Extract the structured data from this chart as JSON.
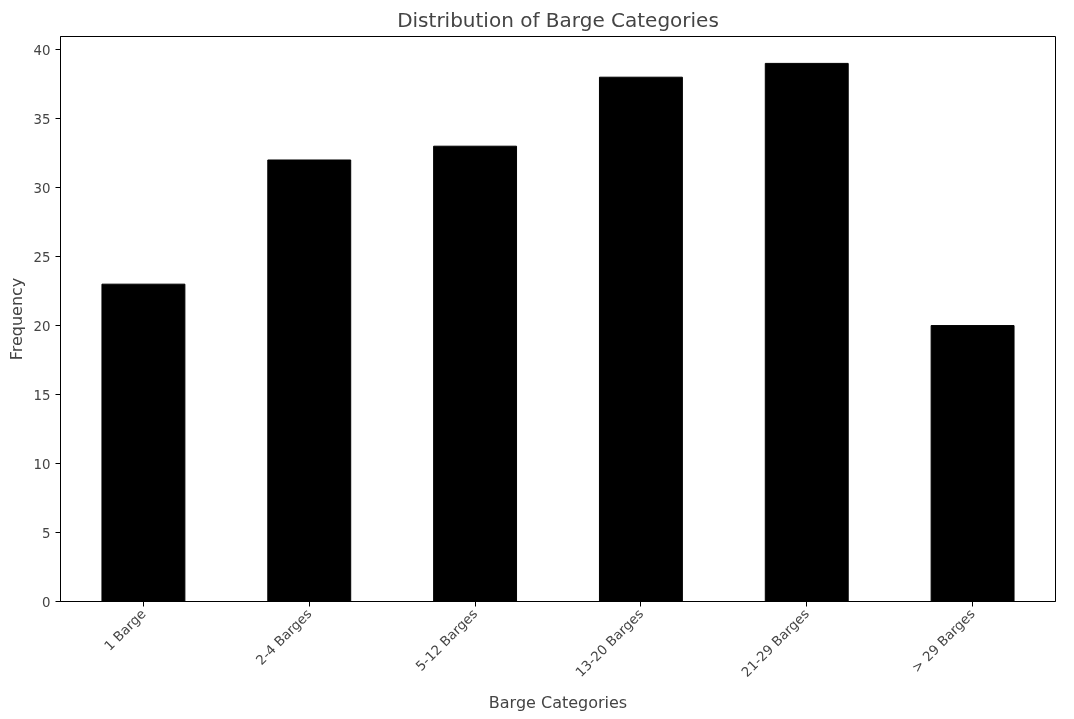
{
  "chart_data": {
    "type": "bar",
    "title": "Distribution of Barge Categories",
    "xlabel": "Barge Categories",
    "ylabel": "Frequency",
    "categories": [
      "1 Barge",
      "2-4 Barges",
      "5-12 Barges",
      "13-20 Barges",
      "21-29 Barges",
      "> 29 Barges"
    ],
    "values": [
      23,
      32,
      33,
      38,
      39,
      20
    ],
    "color": "#000000",
    "ylim": [
      0,
      40.95
    ],
    "yticks": [
      0,
      5,
      10,
      15,
      20,
      25,
      30,
      35,
      40
    ],
    "grid": false
  }
}
